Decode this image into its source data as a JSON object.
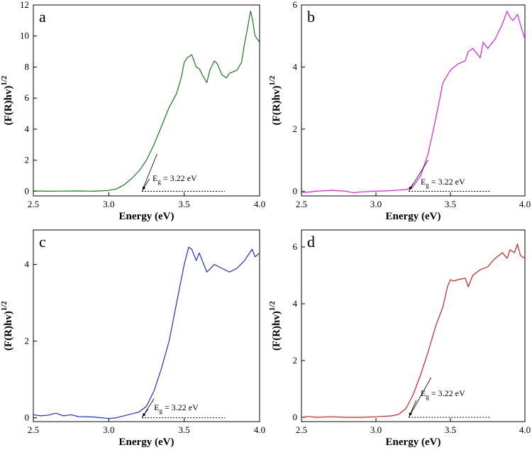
{
  "chart_data": [
    {
      "panel": "a",
      "type": "line",
      "color": "#1a7a1a",
      "xlabel": "Energy (eV)",
      "ylabel": "(F(R)hv)",
      "ylabel_sup": "1/2",
      "xlim": [
        2.5,
        4.0
      ],
      "ylim": [
        -0.3,
        12
      ],
      "xticks": [
        2.5,
        3.0,
        3.5,
        4.0
      ],
      "xtick_labels": [
        "2.5",
        "3.0",
        "3.5",
        "4.0"
      ],
      "yticks": [
        0,
        2,
        4,
        6,
        8,
        10,
        12
      ],
      "ytick_labels": [
        "0",
        "2",
        "4",
        "6",
        "8",
        "10",
        "12"
      ],
      "annotation": {
        "base": "E",
        "sub": "g",
        "rest": " = 3.22 eV",
        "value": 3.22
      },
      "tangent": {
        "x": [
          3.22,
          3.32
        ],
        "y": [
          0,
          2.4
        ]
      },
      "baseline": {
        "x": [
          3.22,
          3.77
        ],
        "y": 0
      },
      "label_at": [
        3.29,
        0.65
      ],
      "arrow_from": [
        3.27,
        0.8
      ],
      "series": [
        {
          "name": "a",
          "x": [
            2.5,
            2.6,
            2.7,
            2.8,
            2.9,
            3.0,
            3.05,
            3.1,
            3.15,
            3.2,
            3.25,
            3.3,
            3.35,
            3.4,
            3.45,
            3.48,
            3.5,
            3.52,
            3.55,
            3.58,
            3.6,
            3.62,
            3.65,
            3.67,
            3.7,
            3.72,
            3.75,
            3.78,
            3.8,
            3.85,
            3.88,
            3.9,
            3.92,
            3.94,
            3.95,
            3.97,
            4.0
          ],
          "y": [
            0.02,
            0.0,
            0.01,
            0.02,
            0.0,
            0.05,
            0.15,
            0.4,
            0.8,
            1.3,
            2.0,
            3.0,
            4.2,
            5.4,
            6.3,
            7.3,
            8.3,
            8.6,
            8.8,
            8.0,
            7.9,
            7.5,
            7.0,
            7.8,
            8.4,
            8.2,
            7.5,
            7.3,
            7.6,
            7.8,
            8.3,
            9.5,
            10.5,
            11.6,
            11.2,
            10.0,
            9.6
          ]
        }
      ]
    },
    {
      "panel": "b",
      "type": "line",
      "color": "#e01ee0",
      "xlabel": "Energy (eV)",
      "ylabel": "(F(R)hv)",
      "ylabel_sup": "1/2",
      "xlim": [
        2.5,
        4.0
      ],
      "ylim": [
        -0.15,
        6
      ],
      "xticks": [
        2.5,
        3.0,
        3.5,
        4.0
      ],
      "xtick_labels": [
        "2.5",
        "3.0",
        "3.5",
        "4.0"
      ],
      "yticks": [
        0,
        2,
        4,
        6
      ],
      "ytick_labels": [
        "0",
        "2",
        "4",
        "6"
      ],
      "annotation": {
        "base": "E",
        "sub": "g",
        "rest": " = 3.22 eV",
        "value": 3.22
      },
      "tangent": {
        "x": [
          3.22,
          3.35
        ],
        "y": [
          0,
          1.0
        ]
      },
      "baseline": {
        "x": [
          3.22,
          3.77
        ],
        "y": 0
      },
      "label_at": [
        3.3,
        0.22
      ],
      "arrow_from": [
        3.25,
        0.25
      ],
      "series": [
        {
          "name": "b",
          "x": [
            2.5,
            2.6,
            2.7,
            2.8,
            2.85,
            2.9,
            3.0,
            3.1,
            3.2,
            3.25,
            3.3,
            3.35,
            3.4,
            3.45,
            3.5,
            3.55,
            3.6,
            3.62,
            3.65,
            3.7,
            3.72,
            3.75,
            3.8,
            3.85,
            3.88,
            3.9,
            3.92,
            3.95,
            3.98,
            4.0
          ],
          "y": [
            -0.05,
            0.0,
            0.03,
            0.0,
            -0.05,
            -0.02,
            0.0,
            0.02,
            0.05,
            0.15,
            0.5,
            1.2,
            2.3,
            3.5,
            3.9,
            4.1,
            4.2,
            4.5,
            4.6,
            4.3,
            4.8,
            4.6,
            4.9,
            5.4,
            5.8,
            5.6,
            5.5,
            5.7,
            5.2,
            4.9
          ]
        }
      ]
    },
    {
      "panel": "c",
      "type": "line",
      "color": "#1f2fd6",
      "xlabel": "Energy (eV)",
      "ylabel": "(F(R)hv)",
      "ylabel_sup": "1/2",
      "xlim": [
        2.5,
        4.0
      ],
      "ylim": [
        -0.1,
        4.9
      ],
      "xticks": [
        2.5,
        3.0,
        3.5,
        4.0
      ],
      "xtick_labels": [
        "2.5",
        "3.0",
        "3.5",
        "4.0"
      ],
      "yticks": [
        0,
        2,
        4
      ],
      "ytick_labels": [
        "0",
        "2",
        "4"
      ],
      "annotation": {
        "base": "E",
        "sub": "g",
        "rest": " = 3.22 eV",
        "value": 3.22
      },
      "tangent": {
        "x": [
          3.22,
          3.3
        ],
        "y": [
          0,
          0.5
        ]
      },
      "baseline": {
        "x": [
          3.22,
          3.77
        ],
        "y": 0
      },
      "label_at": [
        3.3,
        0.2
      ],
      "arrow_from": [
        3.26,
        0.22
      ],
      "series": [
        {
          "name": "c",
          "x": [
            2.5,
            2.55,
            2.6,
            2.65,
            2.7,
            2.75,
            2.8,
            2.9,
            3.0,
            3.05,
            3.1,
            3.15,
            3.2,
            3.25,
            3.3,
            3.35,
            3.4,
            3.45,
            3.5,
            3.53,
            3.55,
            3.58,
            3.6,
            3.65,
            3.7,
            3.75,
            3.8,
            3.85,
            3.9,
            3.95,
            3.97,
            4.0
          ],
          "y": [
            0.08,
            0.05,
            0.07,
            0.12,
            0.05,
            0.08,
            0.03,
            0.02,
            -0.02,
            0.0,
            0.05,
            0.1,
            0.15,
            0.3,
            0.7,
            1.3,
            2.0,
            3.0,
            4.0,
            4.45,
            4.4,
            4.1,
            4.3,
            3.8,
            4.0,
            3.9,
            3.8,
            3.9,
            4.1,
            4.4,
            4.2,
            4.3
          ]
        }
      ]
    },
    {
      "panel": "d",
      "type": "line",
      "color": "#d61f1f",
      "xlabel": "Energy (eV)",
      "ylabel": "(F(R)hv)",
      "ylabel_sup": "1/2",
      "xlim": [
        2.5,
        4.0
      ],
      "ylim": [
        -0.15,
        6.6
      ],
      "xticks": [
        2.5,
        3.0,
        3.5,
        4.0
      ],
      "xtick_labels": [
        "2.5",
        "3.0",
        "3.5",
        "4.0"
      ],
      "yticks": [
        0,
        2,
        4,
        6
      ],
      "ytick_labels": [
        "0",
        "2",
        "4",
        "6"
      ],
      "annotation": {
        "base": "E",
        "sub": "g",
        "rest": " = 3.22 eV",
        "value": 3.22
      },
      "tangent": {
        "x": [
          3.22,
          3.37
        ],
        "y": [
          0,
          1.4
        ]
      },
      "baseline": {
        "x": [
          3.22,
          3.77
        ],
        "y": 0
      },
      "label_at": [
        3.3,
        0.75
      ],
      "arrow_from": [
        3.27,
        0.6
      ],
      "series": [
        {
          "name": "d",
          "x": [
            2.5,
            2.55,
            2.6,
            2.7,
            2.8,
            2.9,
            3.0,
            3.1,
            3.15,
            3.2,
            3.25,
            3.3,
            3.35,
            3.4,
            3.45,
            3.48,
            3.5,
            3.52,
            3.55,
            3.6,
            3.62,
            3.65,
            3.7,
            3.75,
            3.8,
            3.85,
            3.88,
            3.9,
            3.93,
            3.95,
            3.97,
            4.0
          ],
          "y": [
            0.0,
            0.03,
            0.0,
            0.02,
            0.0,
            0.0,
            0.02,
            0.05,
            0.1,
            0.3,
            0.8,
            1.5,
            2.3,
            3.2,
            3.9,
            4.6,
            4.85,
            4.8,
            4.85,
            4.9,
            4.6,
            5.0,
            5.2,
            5.3,
            5.6,
            5.8,
            5.6,
            5.9,
            5.8,
            6.1,
            5.7,
            5.6
          ]
        }
      ]
    }
  ]
}
